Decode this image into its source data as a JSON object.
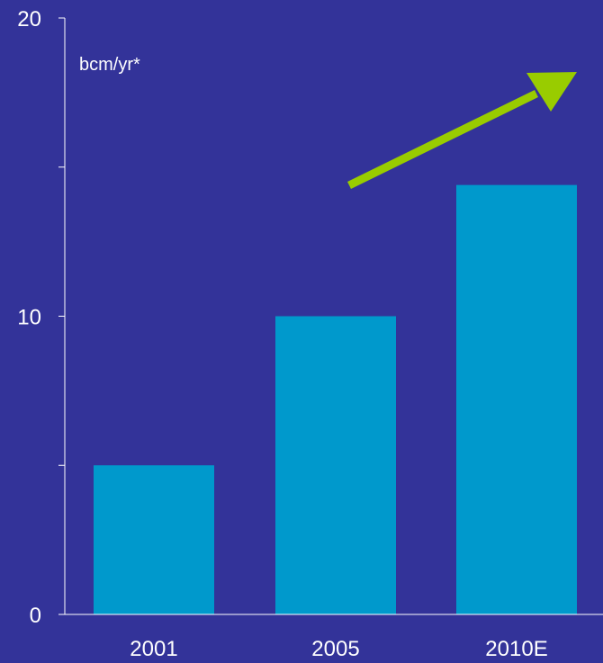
{
  "chart_data": {
    "type": "bar",
    "categories": [
      "2001",
      "2005",
      "2010E"
    ],
    "values": [
      5,
      10,
      14.4
    ],
    "unit_label": "bcm/yr*",
    "ylim": [
      0,
      20
    ],
    "y_ticks": [
      0,
      10,
      20
    ],
    "y_minor_ticks": [
      5,
      15
    ],
    "grid": false,
    "annotation": "upward-trend-arrow"
  },
  "colors": {
    "background": "#333399",
    "bar": "#0099CC",
    "axis": "#ffffff",
    "text": "#ffffff",
    "arrow": "#99CC00"
  }
}
